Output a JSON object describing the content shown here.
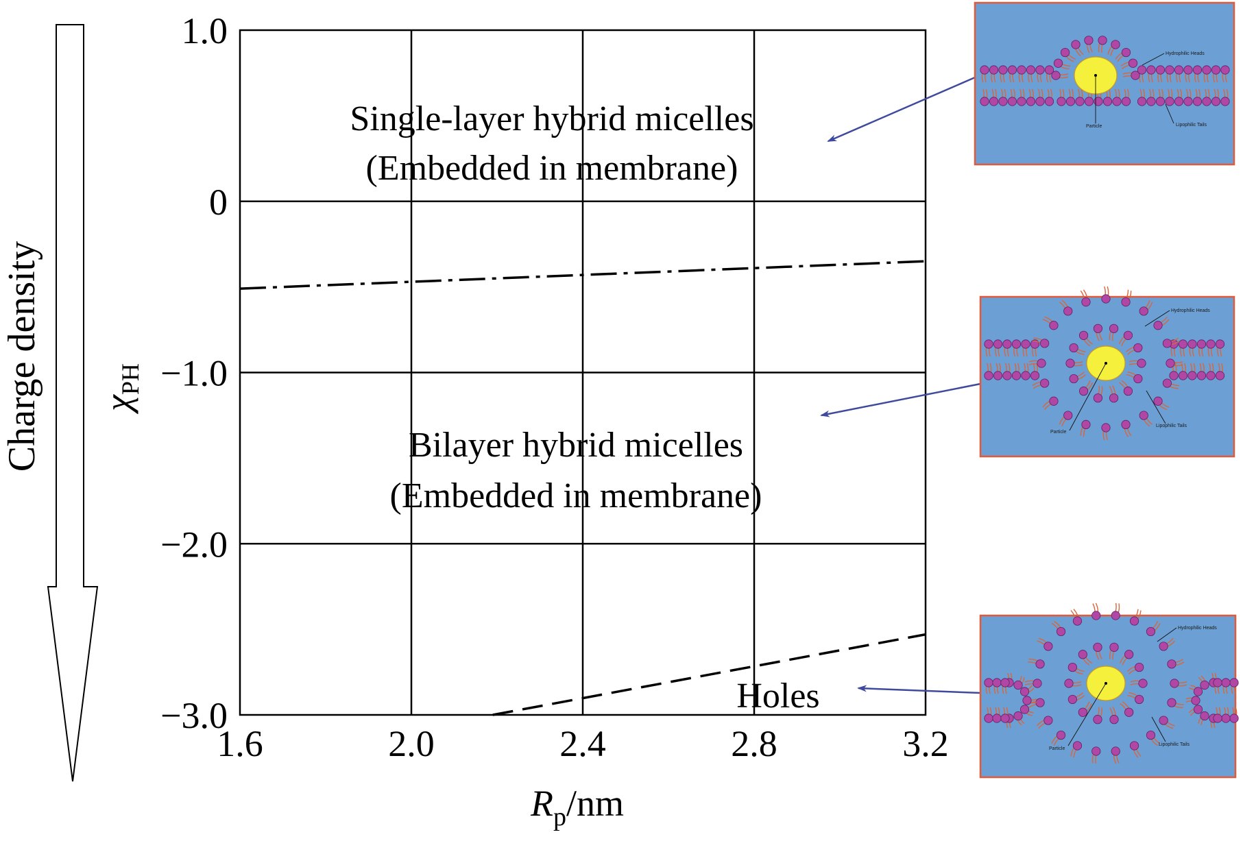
{
  "chart_data": {
    "type": "line",
    "title": "",
    "xlabel": "R_p/nm",
    "xlabel_main": "R",
    "xlabel_sub": "p",
    "xlabel_unit": "/nm",
    "ylabel": "χ_PH",
    "ylabel_main": "χ",
    "ylabel_sub": "PH",
    "xlim": [
      1.6,
      3.2
    ],
    "ylim": [
      -3.0,
      1.0
    ],
    "x_ticks": [
      1.6,
      2.0,
      2.4,
      2.8,
      3.2
    ],
    "x_tick_labels": [
      "1.6",
      "2.0",
      "2.4",
      "2.8",
      "3.2"
    ],
    "y_ticks": [
      1.0,
      0,
      -1.0,
      -2.0,
      -3.0
    ],
    "y_tick_labels": [
      "1.0",
      "0",
      "−1.0",
      "−2.0",
      "−3.0"
    ],
    "grid": true,
    "series": [
      {
        "name": "single-layer / bilayer boundary",
        "style": "dash-dot",
        "x": [
          1.6,
          3.2
        ],
        "y": [
          -0.51,
          -0.35
        ]
      },
      {
        "name": "bilayer / holes boundary",
        "style": "dashed",
        "x": [
          2.19,
          3.2
        ],
        "y": [
          -3.0,
          -2.53
        ]
      }
    ],
    "regions": [
      {
        "line1": "Single-layer hybrid micelles",
        "line2": "(Embedded in membrane)"
      },
      {
        "line1": "Bilayer hybrid micelles",
        "line2": "(Embedded in membrane)"
      },
      {
        "line1": "Holes"
      }
    ],
    "side_arrow_label": "Charge density"
  },
  "insets": [
    {
      "type": "single-layer",
      "labels": {
        "heads": "Hydrophilic Heads",
        "tails": "Lipophilic Tails",
        "particle": "Particle"
      }
    },
    {
      "type": "bilayer",
      "labels": {
        "heads": "Hydrophilic Heads",
        "tails": "Lipophilic Tails",
        "particle": "Particle"
      }
    },
    {
      "type": "hole",
      "labels": {
        "heads": "Hydrophilic Heads",
        "tails": "Lipophilic Tails",
        "particle": "Particle"
      }
    }
  ],
  "colors": {
    "inset_bg": "#6c9fd3",
    "inset_border": "#e25a3c",
    "head": "#b047a5",
    "tail": "#d8663e",
    "particle": "#f4f03c",
    "pointer_arrow": "#3f4a9c"
  }
}
